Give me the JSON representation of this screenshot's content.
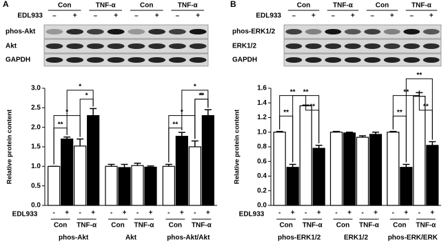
{
  "blots": [
    {
      "panel": "A",
      "groups": [
        "Con",
        "TNF-α",
        "Con",
        "TNF-α"
      ],
      "treatment": "EDL933",
      "marks": [
        "–",
        "+",
        "–",
        "+",
        "–",
        "+",
        "–",
        "+"
      ],
      "rows": [
        "phos-Akt",
        "Akt",
        "GAPDH"
      ]
    },
    {
      "panel": "B",
      "groups": [
        "Con",
        "TNF-α",
        "Con",
        "TNF-α"
      ],
      "treatment": "EDL933",
      "marks": [
        "–",
        "+",
        "–",
        "+",
        "–",
        "+",
        "–",
        "+"
      ],
      "rows": [
        "phos-ERK1/2",
        "ERK1/2",
        "GAPDH"
      ]
    }
  ],
  "chart_data": [
    {
      "type": "bar",
      "ylabel": "Relative protein content",
      "treatment": "EDL933",
      "marks": [
        "-",
        "+"
      ],
      "subgroups": [
        "Con",
        "TNF-α"
      ],
      "colors": [
        "#ffffff",
        "#000000"
      ],
      "ylim": [
        0,
        3.0
      ],
      "yticks": [
        {
          "value": 0,
          "label": "0.0"
        },
        {
          "value": 0.5,
          "label": "0.5"
        },
        {
          "value": 1.0,
          "label": "1.0"
        },
        {
          "value": 1.5,
          "label": "1.5"
        },
        {
          "value": 2.0,
          "label": "2.0"
        },
        {
          "value": 2.5,
          "label": "2.5"
        },
        {
          "value": 3.0,
          "label": "3.0"
        }
      ],
      "groups": [
        {
          "name": "phos-Akt",
          "values": [
            1.0,
            1.7,
            1.52,
            2.3
          ],
          "errors": [
            0,
            0.05,
            0.18,
            0.18
          ]
        },
        {
          "name": "Akt",
          "values": [
            1.0,
            0.97,
            1.02,
            0.98
          ],
          "errors": [
            0.05,
            0.08,
            0.06,
            0.03
          ]
        },
        {
          "name": "phos-Akt/Akt",
          "values": [
            1.0,
            1.77,
            1.5,
            2.3
          ],
          "errors": [
            0.05,
            0.1,
            0.15,
            0.15
          ]
        }
      ],
      "annotations": [
        "**",
        "*",
        "*",
        "*",
        "**",
        "**",
        "*",
        "*",
        "*"
      ]
    },
    {
      "type": "bar",
      "ylabel": "Relative protein content",
      "treatment": "EDL933",
      "marks": [
        "-",
        "+"
      ],
      "subgroups": [
        "Con",
        "TNF-α"
      ],
      "colors": [
        "#ffffff",
        "#000000"
      ],
      "ylim": [
        0,
        1.6
      ],
      "yticks": [
        {
          "value": 0,
          "label": "0.0"
        },
        {
          "value": 0.2,
          "label": "0.2"
        },
        {
          "value": 0.4,
          "label": "0.4"
        },
        {
          "value": 0.6,
          "label": "0.6"
        },
        {
          "value": 0.8,
          "label": "0.8"
        },
        {
          "value": 1.0,
          "label": "1.0"
        },
        {
          "value": 1.2,
          "label": "1.2"
        },
        {
          "value": 1.4,
          "label": "1.4"
        },
        {
          "value": 1.6,
          "label": "1.6"
        }
      ],
      "groups": [
        {
          "name": "phos-ERK1/2",
          "values": [
            1.0,
            0.52,
            1.36,
            0.78
          ],
          "errors": [
            0.01,
            0.04,
            0.01,
            0.04
          ]
        },
        {
          "name": "ERK1/2",
          "values": [
            1.0,
            0.99,
            0.93,
            0.97
          ],
          "errors": [
            0.01,
            0.01,
            0.02,
            0.03
          ]
        },
        {
          "name": "phos-ERK/ERK",
          "values": [
            1.0,
            0.52,
            1.49,
            0.82
          ],
          "errors": [
            0.01,
            0.04,
            0.05,
            0.05
          ]
        }
      ],
      "annotations": [
        "**",
        "**",
        "**",
        "**",
        "**",
        "**",
        "**",
        "**"
      ]
    }
  ]
}
